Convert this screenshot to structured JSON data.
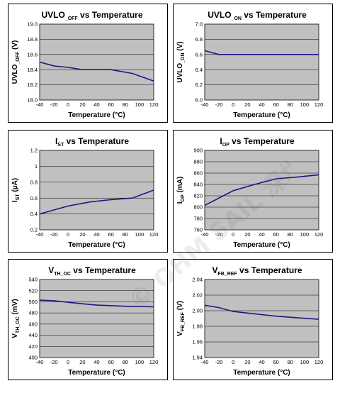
{
  "watermark": {
    "text": "© OHM SAIL 深圳电子"
  },
  "chart_data": [
    {
      "type": "line",
      "title_main": "UVLO",
      "title_sub": "_OFF",
      "title_rest": " vs Temperature",
      "ylabel_main": "UVLO",
      "ylabel_sub": "_OFF",
      "ylabel_rest": " (V)",
      "xlabel": "Temperature (°C)",
      "xlim": [
        -40,
        120
      ],
      "xticks": [
        "-40",
        "-20",
        "0",
        "20",
        "40",
        "60",
        "80",
        "100",
        "120"
      ],
      "ylim": [
        18.0,
        19.0
      ],
      "yticks": [
        "18.0",
        "18.2",
        "18.4",
        "18.6",
        "18.8",
        "19.0"
      ],
      "grid": true,
      "x": [
        -40,
        -20,
        0,
        20,
        40,
        60,
        90,
        120
      ],
      "y": [
        18.5,
        18.45,
        18.43,
        18.4,
        18.4,
        18.4,
        18.35,
        18.25
      ]
    },
    {
      "type": "line",
      "title_main": "UVLO",
      "title_sub": "_ON",
      "title_rest": " vs Temperature",
      "ylabel_main": "UVLO",
      "ylabel_sub": "_ON",
      "ylabel_rest": " (V)",
      "xlabel": "Temperature (°C)",
      "xlim": [
        -40,
        120
      ],
      "xticks": [
        "-40",
        "-20",
        "0",
        "20",
        "40",
        "60",
        "80",
        "100",
        "120"
      ],
      "ylim": [
        6.0,
        7.0
      ],
      "yticks": [
        "6.0",
        "6.2",
        "6.4",
        "6.6",
        "6.8",
        "7.0"
      ],
      "grid": true,
      "x": [
        -40,
        -20,
        0,
        40,
        80,
        120
      ],
      "y": [
        6.65,
        6.6,
        6.6,
        6.6,
        6.6,
        6.6
      ]
    },
    {
      "type": "line",
      "title_main": "I",
      "title_sub": "ST",
      "title_rest": " vs Temperature",
      "ylabel_main": "I",
      "ylabel_sub": "ST",
      "ylabel_rest": " (µA)",
      "xlabel": "Temperature (°C)",
      "xlim": [
        -40,
        120
      ],
      "xticks": [
        "-40",
        "-20",
        "0",
        "20",
        "40",
        "60",
        "80",
        "100",
        "120"
      ],
      "ylim": [
        0.2,
        1.2
      ],
      "yticks": [
        "0.2",
        "0.4",
        "0.6",
        "0.8",
        "1",
        "1.2"
      ],
      "grid": true,
      "x": [
        -40,
        -20,
        0,
        30,
        60,
        90,
        120
      ],
      "y": [
        0.4,
        0.45,
        0.5,
        0.55,
        0.58,
        0.6,
        0.7
      ]
    },
    {
      "type": "line",
      "title_main": "I",
      "title_sub": "OP",
      "title_rest": " vs Temperature",
      "ylabel_main": "I",
      "ylabel_sub": "OP",
      "ylabel_rest": " (mA)",
      "xlabel": "Temperature (°C)",
      "xlim": [
        -40,
        120
      ],
      "xticks": [
        "-40",
        "-20",
        "0",
        "20",
        "40",
        "60",
        "80",
        "100",
        "120"
      ],
      "ylim": [
        760,
        900
      ],
      "yticks": [
        "760",
        "780",
        "800",
        "820",
        "840",
        "860",
        "880",
        "900"
      ],
      "grid": true,
      "x": [
        -40,
        0,
        30,
        60,
        90,
        120
      ],
      "y": [
        803,
        829,
        840,
        850,
        853,
        857
      ]
    },
    {
      "type": "line",
      "title_main": "V",
      "title_sub": "TH_OC",
      "title_rest": " vs Temperature",
      "ylabel_main": "V",
      "ylabel_sub": "TH_OC",
      "ylabel_rest": " (mV)",
      "xlabel": "Temperature (°C)",
      "xlim": [
        -40,
        120
      ],
      "xticks": [
        "-40",
        "-20",
        "0",
        "20",
        "40",
        "60",
        "80",
        "100",
        "120"
      ],
      "ylim": [
        400,
        540
      ],
      "yticks": [
        "400",
        "420",
        "440",
        "460",
        "480",
        "500",
        "520",
        "540"
      ],
      "grid": true,
      "x": [
        -40,
        -20,
        0,
        40,
        80,
        120
      ],
      "y": [
        503,
        502,
        499,
        494,
        492,
        491
      ]
    },
    {
      "type": "line",
      "title_main": "V",
      "title_sub": "FB_REF",
      "title_rest": " vs Temperature",
      "ylabel_main": "V",
      "ylabel_sub": "FB_REF",
      "ylabel_rest": " (V)",
      "xlabel": "Temperature (°C)",
      "xlim": [
        -40,
        120
      ],
      "xticks": [
        "-40",
        "-20",
        "0",
        "20",
        "40",
        "60",
        "80",
        "100",
        "120"
      ],
      "ylim": [
        1.94,
        2.04
      ],
      "yticks": [
        "1.94",
        "1.96",
        "1.98",
        "2.00",
        "2.02",
        "2.04"
      ],
      "grid": true,
      "x": [
        -40,
        -20,
        0,
        30,
        60,
        90,
        120
      ],
      "y": [
        2.007,
        2.004,
        1.999,
        1.996,
        1.993,
        1.991,
        1.989
      ]
    }
  ]
}
